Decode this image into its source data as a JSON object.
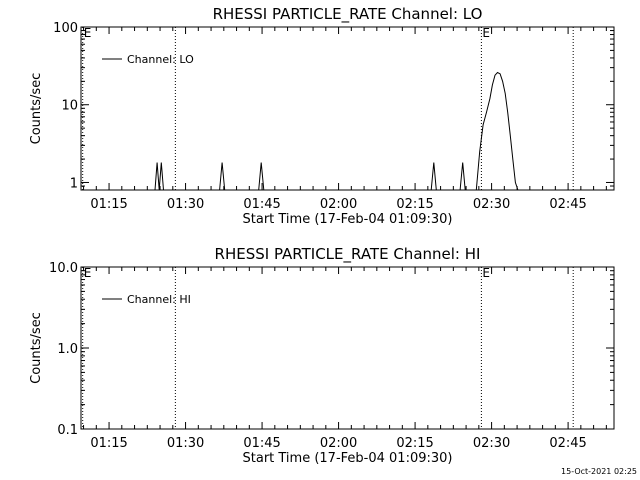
{
  "chart_data": [
    {
      "type": "line",
      "title": "RHESSI PARTICLE_RATE Channel: LO",
      "xlabel": "Start Time (17-Feb-04 01:09:30)",
      "ylabel": "Counts/sec",
      "y_scale": "log",
      "xlim": [
        "01:09:30",
        "02:54:00"
      ],
      "ylim": [
        0.8,
        100
      ],
      "x_ticks": [
        "01:15",
        "01:30",
        "01:45",
        "02:00",
        "02:15",
        "02:30",
        "02:45"
      ],
      "y_ticks": [
        "1",
        "10",
        "100"
      ],
      "legend": {
        "entries": [
          "Channel: LO"
        ],
        "placement": "top-left"
      },
      "event_lines": [
        {
          "time": "01:09:50",
          "label": "E"
        },
        {
          "time": "01:28:00",
          "label": ""
        },
        {
          "time": "02:28:00",
          "label": "E"
        },
        {
          "time": "02:46:00",
          "label": ""
        }
      ],
      "series": [
        {
          "name": "Channel: LO",
          "x": [
            "01:24:00",
            "01:24:25",
            "01:24:50",
            "01:25:15",
            "01:25:40",
            "01:26:05",
            "01:36:40",
            "01:37:10",
            "01:37:40",
            "01:44:20",
            "01:44:50",
            "01:45:20",
            "02:18:10",
            "02:18:40",
            "02:19:10",
            "02:23:50",
            "02:24:20",
            "02:24:50",
            "02:27:00",
            "02:27:40",
            "02:28:20",
            "02:29:00",
            "02:29:40",
            "02:30:10",
            "02:30:40",
            "02:31:10",
            "02:31:40",
            "02:32:10",
            "02:32:40",
            "02:33:10",
            "02:33:40",
            "02:34:10",
            "02:34:40",
            "02:35:10"
          ],
          "y": [
            0.8,
            1.8,
            0.8,
            1.8,
            0.8,
            0.8,
            0.8,
            1.8,
            0.8,
            0.8,
            1.8,
            0.8,
            0.8,
            1.8,
            0.8,
            0.8,
            1.8,
            0.8,
            0.8,
            2.5,
            5.5,
            8,
            12,
            18,
            24,
            26,
            25,
            20,
            14,
            8,
            4,
            2,
            1,
            0.8
          ]
        }
      ]
    },
    {
      "type": "line",
      "title": "RHESSI PARTICLE_RATE Channel: HI",
      "xlabel": "Start Time (17-Feb-04 01:09:30)",
      "ylabel": "Counts/sec",
      "y_scale": "log",
      "xlim": [
        "01:09:30",
        "02:54:00"
      ],
      "ylim": [
        0.1,
        10
      ],
      "x_ticks": [
        "01:15",
        "01:30",
        "01:45",
        "02:00",
        "02:15",
        "02:30",
        "02:45"
      ],
      "y_ticks": [
        "0.1",
        "1.0",
        "10.0"
      ],
      "legend": {
        "entries": [
          "Channel: HI"
        ],
        "placement": "top-left"
      },
      "event_lines": [
        {
          "time": "01:09:50",
          "label": "E"
        },
        {
          "time": "01:28:00",
          "label": ""
        },
        {
          "time": "02:28:00",
          "label": "E"
        },
        {
          "time": "02:46:00",
          "label": ""
        }
      ],
      "series": [
        {
          "name": "Channel: HI",
          "x": [],
          "y": []
        }
      ]
    }
  ],
  "footer": {
    "timestamp": "15-Oct-2021 02:25"
  }
}
